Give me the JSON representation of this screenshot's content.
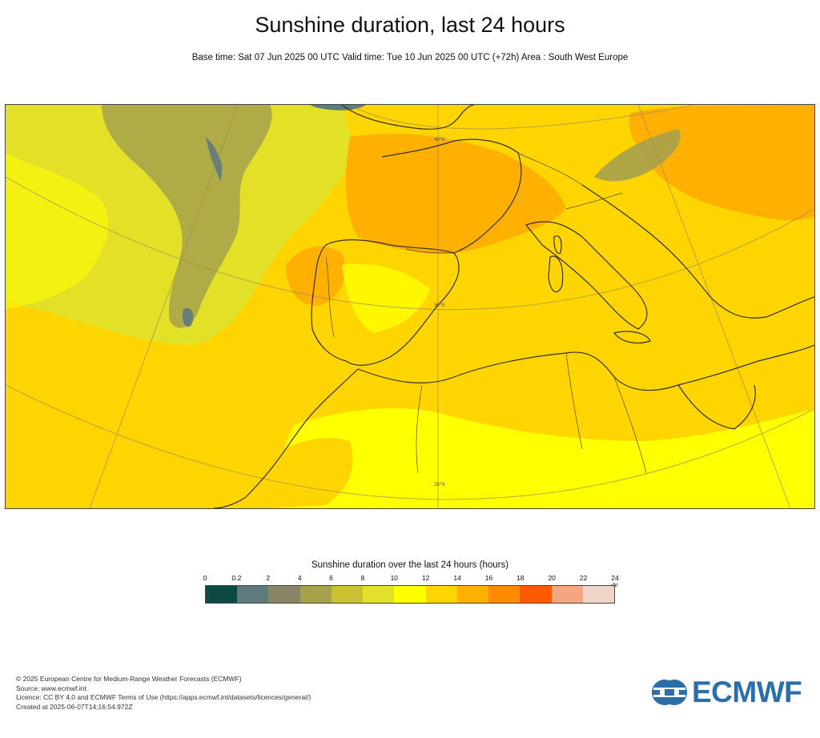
{
  "title": "Sunshine duration, last 24 hours",
  "subtitle": "Base time: Sat 07 Jun 2025 00 UTC Valid time: Tue 10 Jun 2025 00 UTC (+72h) Area : South West Europe",
  "map": {
    "region": "South West Europe",
    "parallel_labels": [
      "40°N",
      "30°N",
      "20°N"
    ]
  },
  "legend": {
    "title": "Sunshine duration over the last 24 hours (hours)",
    "unit": "hr",
    "ticks": [
      "0",
      "0.2",
      "2",
      "4",
      "6",
      "8",
      "10",
      "12",
      "14",
      "16",
      "18",
      "20",
      "22",
      "24"
    ],
    "colors": [
      "#0d4a46",
      "#5e7a7c",
      "#8a8466",
      "#a6a24c",
      "#c8c232",
      "#e2e02a",
      "#ffff00",
      "#ffd500",
      "#ffb000",
      "#ff8c00",
      "#ff5a00",
      "#f4a582",
      "#f0d5c8"
    ]
  },
  "footer": {
    "line1": "© 2025 European Centre for Medium-Range Weather Forecasts (ECMWF)",
    "line2": "Source: www.ecmwf.int",
    "line3": "Licence: CC BY 4.0 and ECMWF Terms of Use (https://apps.ecmwf.int/datasets/licences/general/)",
    "line4": "Created at 2025-06-07T14:16:54.972Z"
  },
  "logo": {
    "text": "ECMWF",
    "color": "#2b6ea8"
  }
}
